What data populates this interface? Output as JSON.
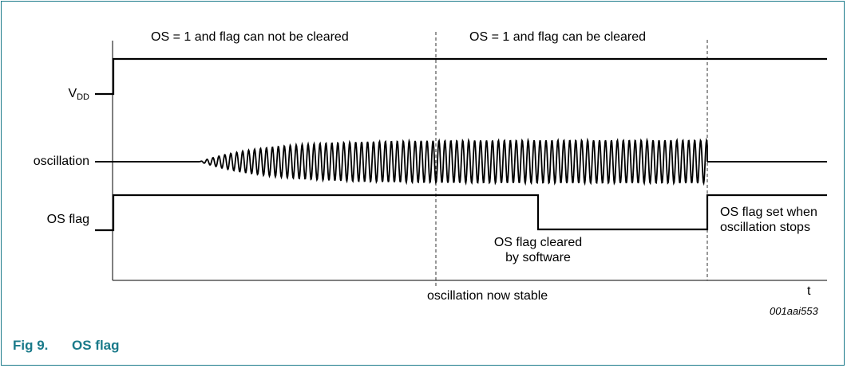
{
  "diagram": {
    "regions": {
      "left": "OS = 1 and flag can not be cleared",
      "right": "OS = 1 and flag can be cleared"
    },
    "signals": {
      "vdd_main": "V",
      "vdd_sub": "DD",
      "oscillation": "oscillation",
      "os_flag": "OS flag"
    },
    "annotations": {
      "cleared_line1": "OS flag cleared",
      "cleared_line2": "by software",
      "set_line1": "OS flag set when",
      "set_line2": "oscillation stops",
      "stable": "oscillation now stable",
      "time_axis": "t",
      "ref_code": "001aai553"
    }
  },
  "caption": {
    "number": "Fig 9.",
    "title": "OS flag"
  },
  "colors": {
    "accent": "#1a7a8a",
    "line": "#000000"
  }
}
